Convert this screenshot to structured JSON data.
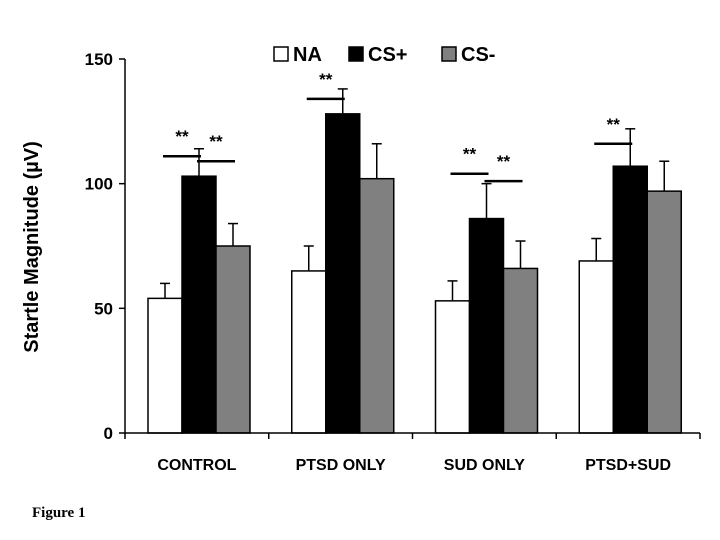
{
  "chart_data": {
    "type": "bar",
    "categories": [
      "CONTROL",
      "PTSD ONLY",
      "SUD ONLY",
      "PTSD+SUD"
    ],
    "series": [
      {
        "name": "NA",
        "color": "#ffffff",
        "values": [
          54,
          65,
          53,
          69
        ],
        "errors": [
          6,
          10,
          8,
          9
        ]
      },
      {
        "name": "CS+",
        "color": "#000000",
        "values": [
          103,
          128,
          86,
          107
        ],
        "errors": [
          11,
          10,
          14,
          15
        ]
      },
      {
        "name": "CS-",
        "color": "#808080",
        "values": [
          75,
          102,
          66,
          97
        ],
        "errors": [
          9,
          14,
          11,
          12
        ]
      }
    ],
    "ylabel": "Startle Magnitude (µV)",
    "ylim": [
      0,
      150
    ],
    "yticks": [
      0,
      50,
      100,
      150
    ],
    "legend_position": "top",
    "significance": [
      {
        "category": 0,
        "between": [
          0,
          1
        ],
        "label": "**",
        "y": 111
      },
      {
        "category": 0,
        "between": [
          1,
          2
        ],
        "label": "**",
        "y": 109
      },
      {
        "category": 1,
        "between": [
          0,
          1
        ],
        "label": "**",
        "y": 134
      },
      {
        "category": 2,
        "between": [
          0,
          1
        ],
        "label": "**",
        "y": 104
      },
      {
        "category": 2,
        "between": [
          1,
          2
        ],
        "label": "**",
        "y": 101
      },
      {
        "category": 3,
        "between": [
          0,
          1
        ],
        "label": "**",
        "y": 116
      }
    ]
  },
  "caption": "Figure 1"
}
